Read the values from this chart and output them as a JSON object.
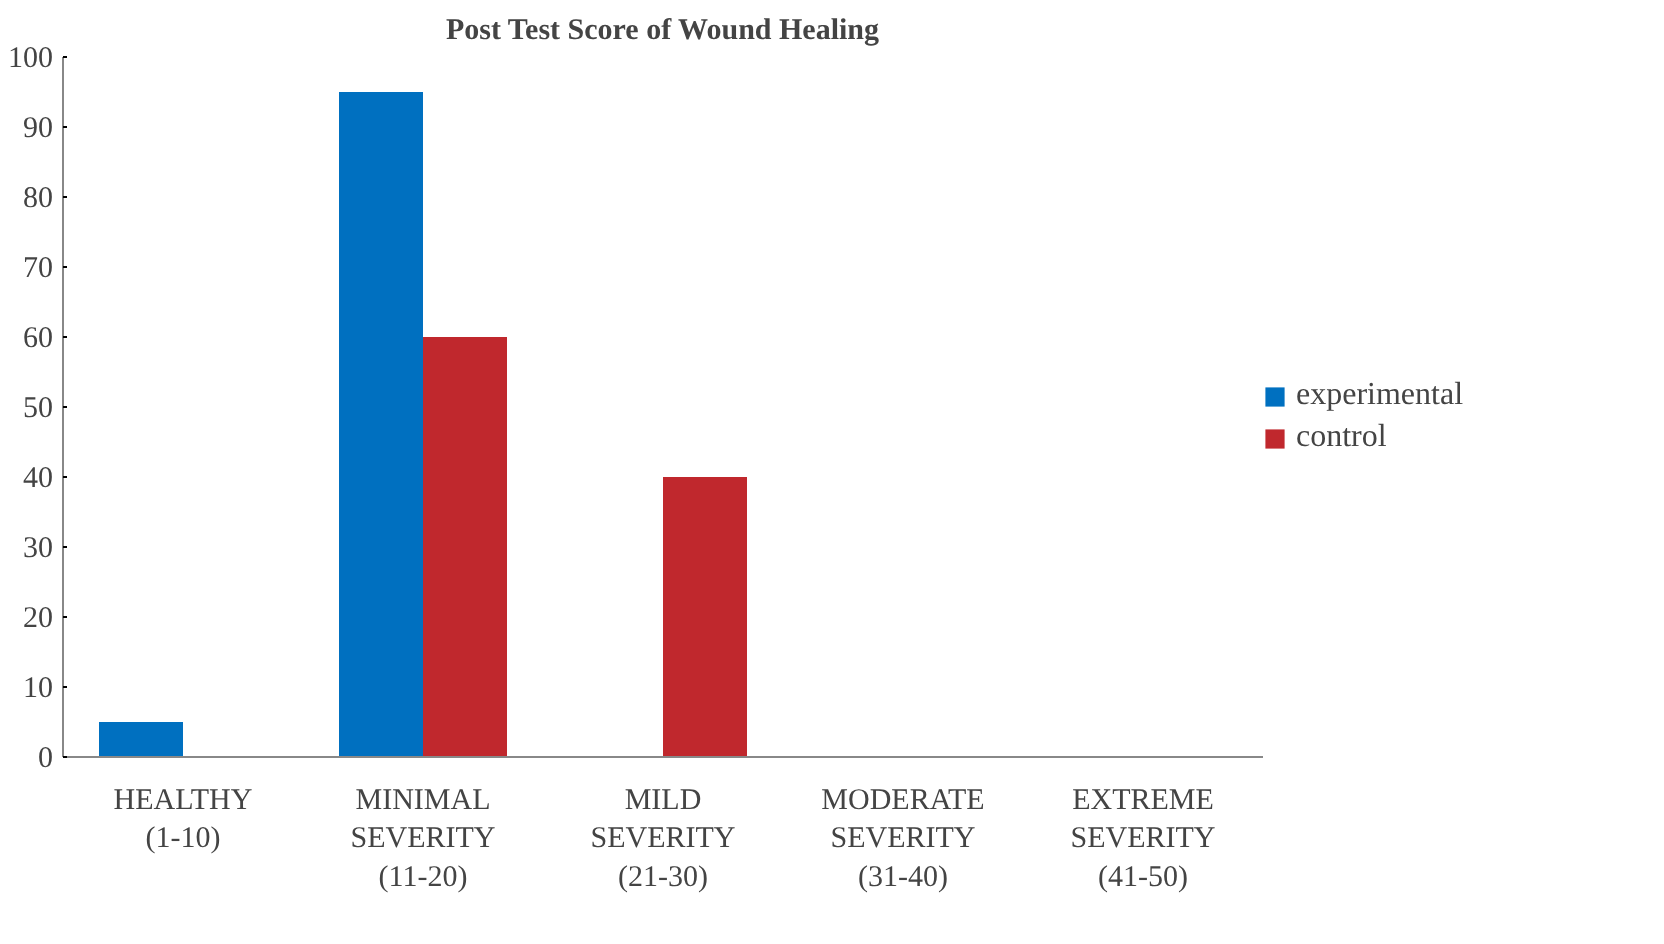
{
  "chart_data": {
    "type": "bar",
    "title": "Post Test Score of Wound Healing",
    "categories": [
      "HEALTHY (1-10)",
      "MINIMAL SEVERITY (11-20)",
      "MILD SEVERITY (21-30)",
      "MODERATE SEVERITY (31-40)",
      "EXTREME SEVERITY (41-50)"
    ],
    "series": [
      {
        "name": "experimental",
        "color": "#0070c0",
        "values": [
          5,
          95,
          0,
          0,
          0
        ]
      },
      {
        "name": "control",
        "color": "#c0282d",
        "values": [
          0,
          60,
          40,
          0,
          0
        ]
      }
    ],
    "ylim": [
      0,
      100
    ],
    "yticks": [
      0,
      10,
      20,
      30,
      40,
      50,
      60,
      70,
      80,
      90,
      100
    ],
    "grid": false,
    "legend": "right"
  }
}
